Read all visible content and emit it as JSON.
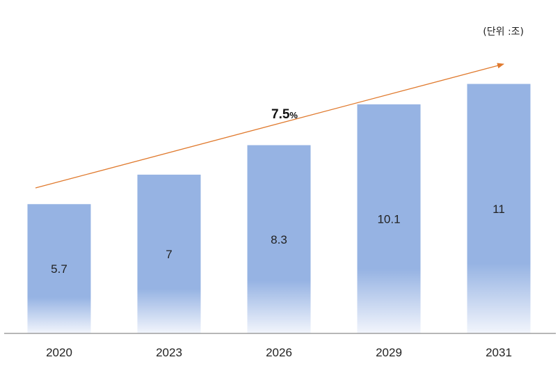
{
  "chart_data": {
    "type": "bar",
    "categories": [
      "2020",
      "2023",
      "2026",
      "2029",
      "2031"
    ],
    "values": [
      5.7,
      7,
      8.3,
      10.1,
      11
    ],
    "value_labels": [
      "5.7",
      "7",
      "8.3",
      "10.1",
      "11"
    ],
    "ylim": [
      0,
      14.7
    ],
    "unit_note": "(단위 :조)",
    "growth_annotation": {
      "number": "7.5",
      "unit": "%"
    },
    "grid": false,
    "legend": "none",
    "colors": {
      "bar": "#96b3e3",
      "bar_fade": "#f2f5fc",
      "trend_arrow": "#e07a2e",
      "axis": "#8c8c8c"
    }
  }
}
